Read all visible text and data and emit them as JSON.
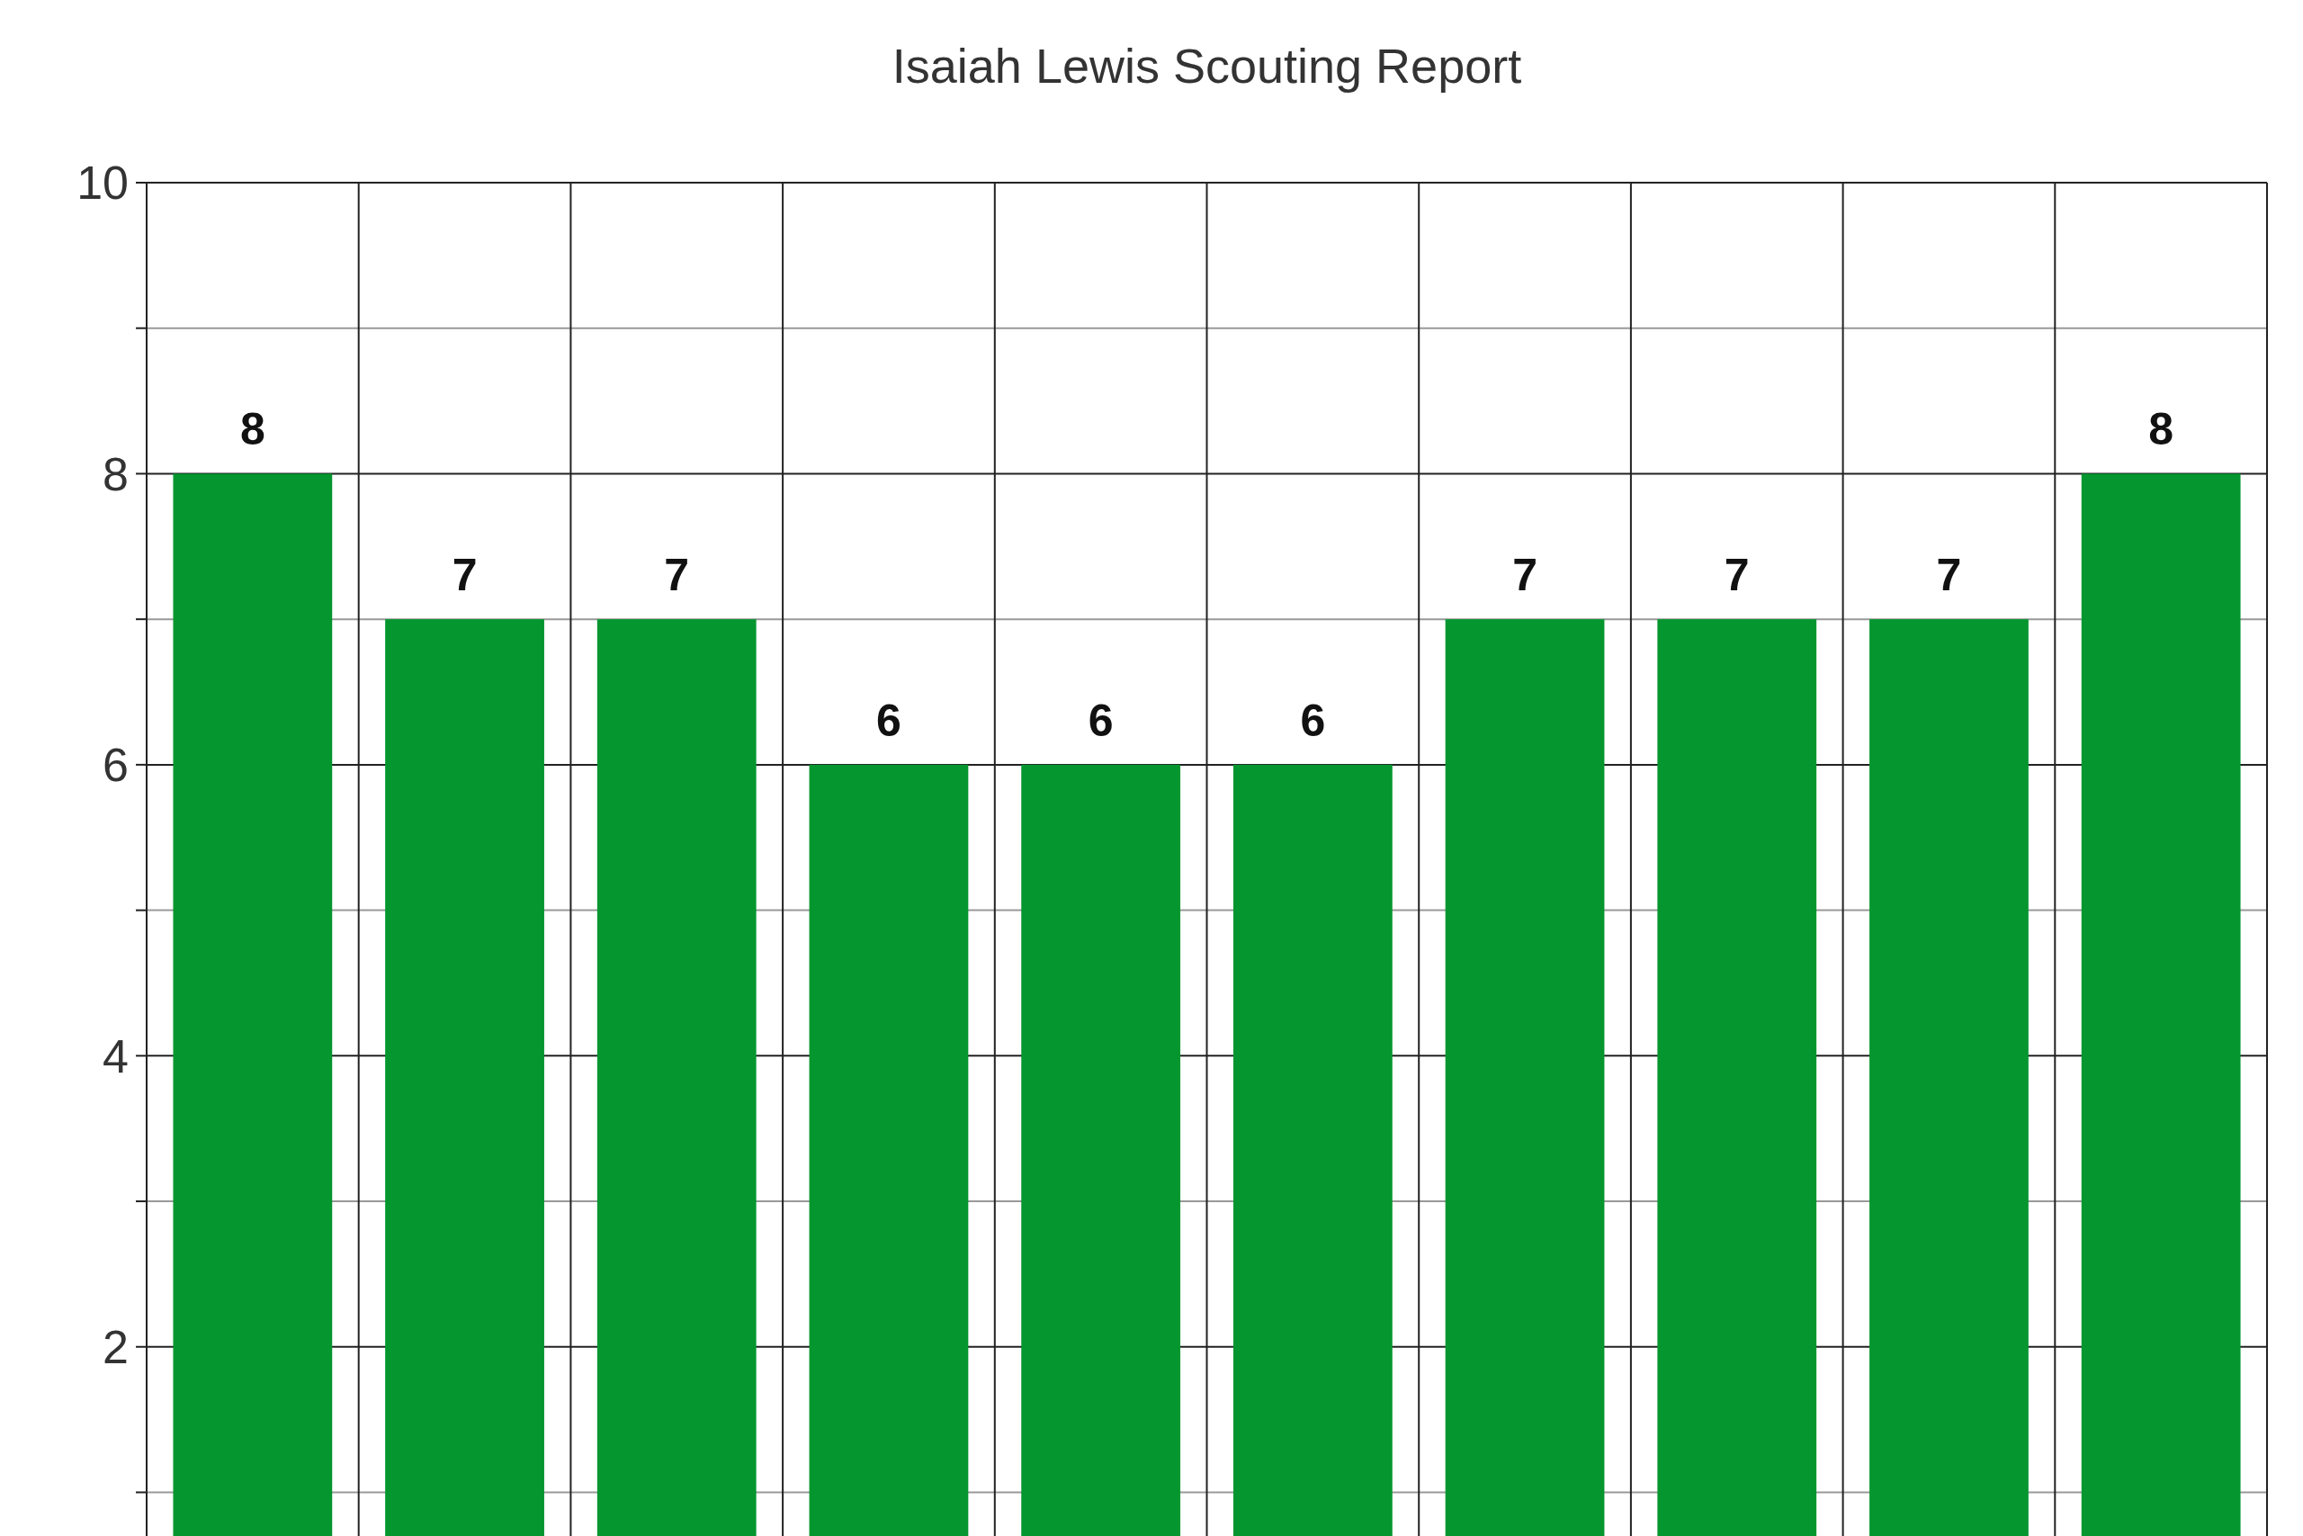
{
  "chart_data": {
    "type": "bar",
    "title": "Isaiah Lewis Scouting Report",
    "categories": [
      null,
      null,
      null,
      null,
      null,
      null,
      null,
      null,
      null,
      null
    ],
    "values": [
      8,
      7,
      7,
      6,
      6,
      6,
      7,
      7,
      7,
      8
    ],
    "color": "#05962f",
    "ylim": [
      0.7,
      10
    ],
    "yticks": [
      {
        "value": 1,
        "label": null
      },
      2,
      {
        "value": 3,
        "label": null
      },
      4,
      {
        "value": 5,
        "label": null
      },
      6,
      {
        "value": 7,
        "label": null
      },
      8,
      {
        "value": 9,
        "label": null
      },
      10
    ],
    "grid": true,
    "data_labels": true
  }
}
